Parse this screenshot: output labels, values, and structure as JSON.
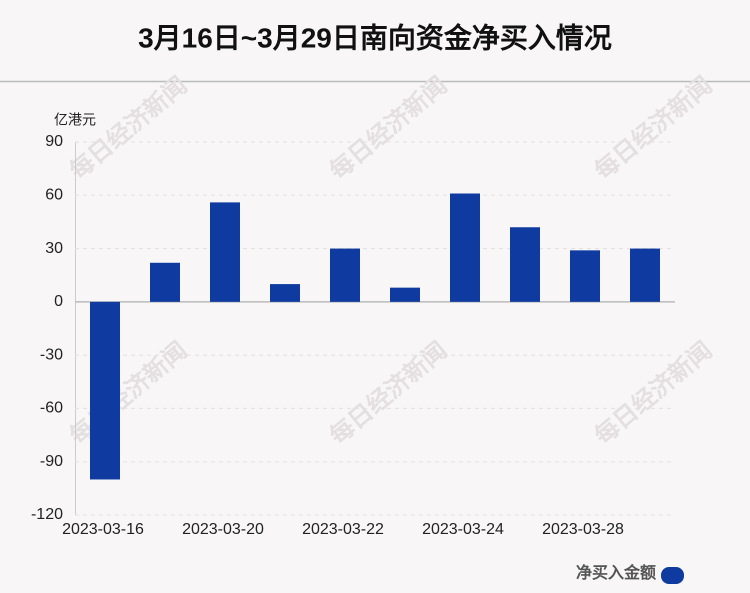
{
  "chart_data": {
    "type": "bar",
    "title": "3月16日~3月29日南向资金净买入情况",
    "y_axis_label": "亿港元",
    "watermark": "每日经济新闻",
    "categories": [
      "2023-03-16",
      null,
      "2023-03-20",
      null,
      "2023-03-22",
      null,
      "2023-03-24",
      null,
      "2023-03-28",
      null
    ],
    "series": [
      {
        "name": "净买入金额",
        "color": "#0f3aa0",
        "values": [
          -100,
          22,
          56,
          10,
          30,
          8,
          61,
          42,
          29,
          30
        ]
      }
    ],
    "ylim": [
      -120,
      90
    ],
    "yticks": [
      -120,
      -90,
      -60,
      -30,
      0,
      30,
      60,
      90
    ],
    "grid": true,
    "legend": "bottom-right"
  }
}
